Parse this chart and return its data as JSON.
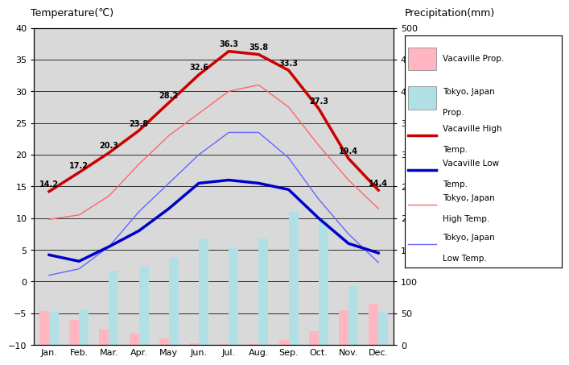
{
  "months": [
    "Jan.",
    "Feb.",
    "Mar.",
    "Apr.",
    "May",
    "Jun.",
    "Jul.",
    "Aug.",
    "Sep.",
    "Oct.",
    "Nov.",
    "Dec."
  ],
  "vacaville_high": [
    14.2,
    17.2,
    20.3,
    23.8,
    28.2,
    32.6,
    36.3,
    35.8,
    33.3,
    27.3,
    19.4,
    14.4
  ],
  "vacaville_low": [
    4.2,
    3.2,
    5.5,
    8.0,
    11.5,
    15.5,
    16.0,
    15.5,
    14.5,
    10.0,
    6.0,
    4.5
  ],
  "tokyo_high": [
    9.8,
    10.5,
    13.5,
    18.5,
    23.0,
    26.5,
    30.0,
    31.0,
    27.5,
    21.5,
    16.0,
    11.5
  ],
  "tokyo_low": [
    1.0,
    2.0,
    5.5,
    11.0,
    15.5,
    20.0,
    23.5,
    23.5,
    19.5,
    13.0,
    7.5,
    3.0
  ],
  "vacaville_precip_mm": [
    53,
    40,
    25,
    18,
    10,
    3,
    1,
    2,
    8,
    22,
    55,
    65
  ],
  "tokyo_precip_mm": [
    52,
    56,
    117,
    124,
    138,
    168,
    154,
    168,
    210,
    197,
    93,
    51
  ],
  "vacaville_high_labels": [
    "14.2",
    "17.2",
    "20.3",
    "23.8",
    "28.2",
    "32.6",
    "36.3",
    "35.8",
    "33.3",
    "27.3",
    "19.4",
    "14.4"
  ],
  "background_color": "#d9d9d9",
  "white_bg": "#ffffff",
  "vacaville_high_color": "#cc0000",
  "vacaville_low_color": "#0000cc",
  "tokyo_high_color": "#ff6666",
  "tokyo_low_color": "#6666ff",
  "vacaville_precip_color": "#ffb6c1",
  "tokyo_precip_color": "#b0e0e6",
  "grid_color": "#000000",
  "title_left": "Temperature(℃)",
  "title_right": "Precipitation(mm)",
  "ylim_temp": [
    -10,
    40
  ],
  "ylim_precip": [
    0,
    500
  ],
  "temp_yticks": [
    -10,
    -5,
    0,
    5,
    10,
    15,
    20,
    25,
    30,
    35,
    40
  ],
  "precip_yticks": [
    0,
    50,
    100,
    150,
    200,
    250,
    300,
    350,
    400,
    450,
    500
  ],
  "legend_labels": [
    "Vacaville Prop.",
    "Tokyo, Japan\nProp.",
    "Vacaville High\nTemp.",
    "Vacaville Low\nTemp.",
    "Tokyo, Japan\nHigh Temp.",
    "Tokyo, Japan\nLow Temp."
  ]
}
